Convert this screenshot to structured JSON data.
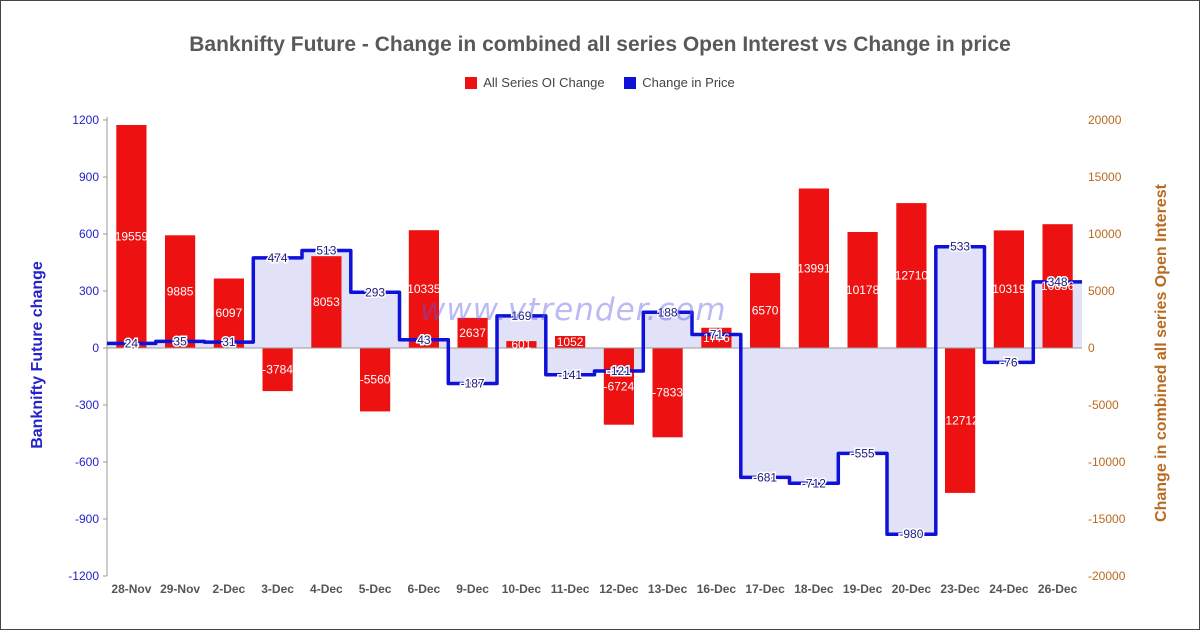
{
  "chart_data": {
    "type": "bar",
    "title": "Banknifty Future - Change in combined all series Open Interest vs Change in price",
    "categories": [
      "28-Nov",
      "29-Nov",
      "2-Dec",
      "3-Dec",
      "4-Dec",
      "5-Dec",
      "6-Dec",
      "9-Dec",
      "10-Dec",
      "11-Dec",
      "12-Dec",
      "13-Dec",
      "16-Dec",
      "17-Dec",
      "18-Dec",
      "19-Dec",
      "20-Dec",
      "23-Dec",
      "24-Dec",
      "26-Dec"
    ],
    "series": [
      {
        "name": "All Series OI Change",
        "type": "bar",
        "axis": "right",
        "color": "#ee1111",
        "values": [
          19559,
          9885,
          6097,
          -3784,
          8053,
          -5560,
          10335,
          2637,
          601,
          1052,
          -6724,
          -7833,
          1776,
          6570,
          13991,
          10178,
          12710,
          -12712,
          10319,
          10856
        ]
      },
      {
        "name": "Change in Price",
        "type": "step-line",
        "axis": "left",
        "color": "#0f10d8",
        "values": [
          24,
          35,
          31,
          474,
          513,
          293,
          43,
          -187,
          169,
          -141,
          -121,
          188,
          71,
          -681,
          -712,
          -555,
          -980,
          533,
          -76,
          348
        ]
      }
    ],
    "data_labels": {
      "oi": [
        "19559",
        "9885",
        "6097",
        "-3784",
        "8053",
        "-5560",
        "10335",
        "2637",
        "601",
        "1052",
        "-6724",
        "-7833",
        "1776",
        "6570",
        "13991",
        "10178",
        "12710",
        "-12712",
        "10319",
        "10856"
      ],
      "price": [
        "24",
        "35",
        "31",
        "474",
        "513",
        "293",
        "43",
        "-187",
        "169",
        "-141",
        "-121",
        "188",
        "71",
        "-681",
        "-712",
        "-555",
        "-980",
        "533",
        "-76",
        "348"
      ]
    },
    "y_left": {
      "label": "Banknifty Future change",
      "min": -1200,
      "max": 1200,
      "ticks": [
        "1200",
        "900",
        "600",
        "300",
        "0",
        "-300",
        "-600",
        "-900",
        "-1200"
      ],
      "color": "#2323c9"
    },
    "y_right": {
      "label": "Change in combined all series Open Interest",
      "min": -20000,
      "max": 20000,
      "ticks": [
        "20000",
        "15000",
        "10000",
        "5000",
        "0",
        "-5000",
        "-10000",
        "-15000",
        "-20000"
      ],
      "color": "#b96a1e"
    },
    "grid": false,
    "legend_placement": "top-center"
  },
  "watermark": "www.vtrender.com"
}
